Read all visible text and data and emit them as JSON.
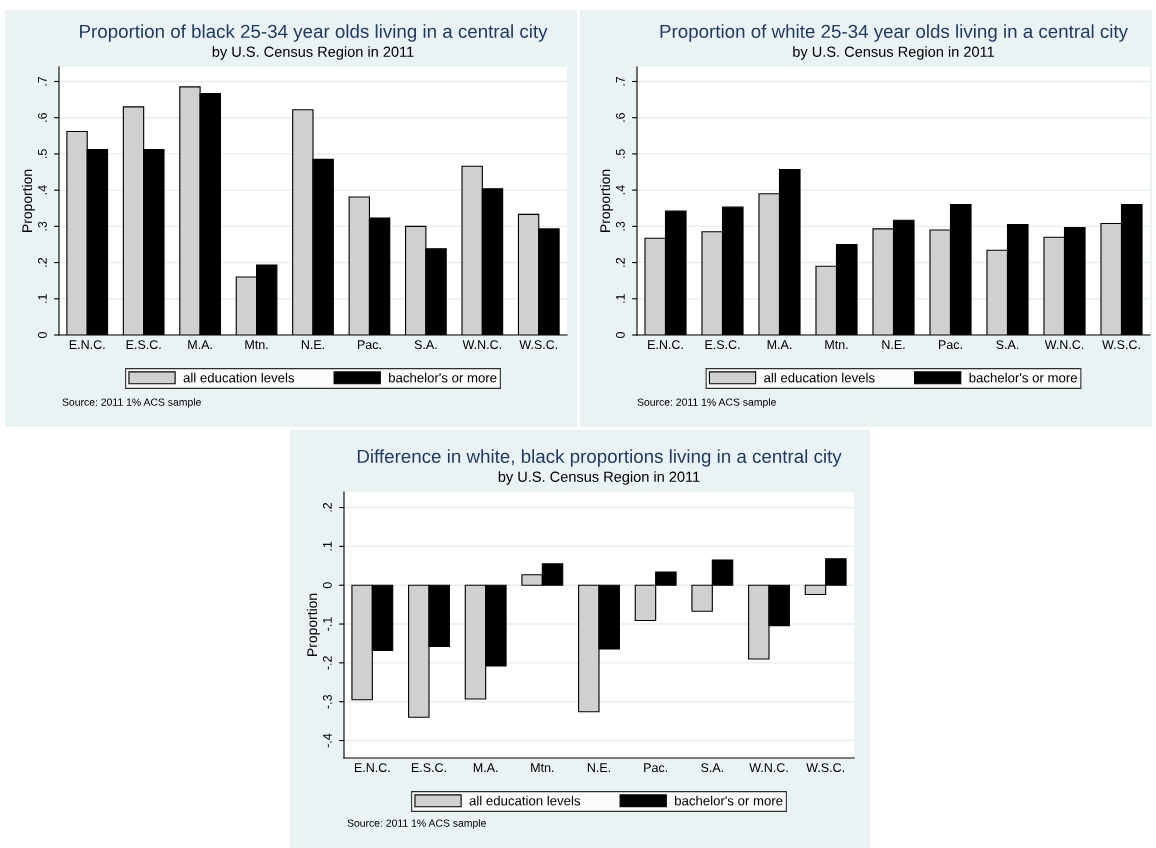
{
  "chart_data": [
    {
      "type": "bar",
      "title": "Proportion of black 25-34 year olds living in a central city",
      "subtitle": "by U.S. Census Region in 2011",
      "ylabel": "Proportion",
      "categories": [
        "E.N.C.",
        "E.S.C.",
        "M.A.",
        "Mtn.",
        "N.E.",
        "Pac.",
        "S.A.",
        "W.N.C.",
        "W.S.C."
      ],
      "series": [
        {
          "name": "all education levels",
          "color": "#d0d0d0",
          "values": [
            0.562,
            0.63,
            0.685,
            0.16,
            0.622,
            0.381,
            0.3,
            0.466,
            0.333
          ]
        },
        {
          "name": "bachelor's or more",
          "color": "#000000",
          "values": [
            0.512,
            0.512,
            0.667,
            0.193,
            0.485,
            0.323,
            0.238,
            0.404,
            0.293
          ]
        }
      ],
      "ylim": [
        0,
        0.74
      ],
      "yticks": [
        {
          "value": 0,
          "label": "0"
        },
        {
          "value": 0.1,
          "label": ".1"
        },
        {
          "value": 0.2,
          "label": ".2"
        },
        {
          "value": 0.3,
          "label": ".3"
        },
        {
          "value": 0.4,
          "label": ".4"
        },
        {
          "value": 0.5,
          "label": ".5"
        },
        {
          "value": 0.6,
          "label": ".6"
        },
        {
          "value": 0.7,
          "label": ".7"
        }
      ],
      "grid": "y",
      "legend": "bottom",
      "annotations": [
        "Source: 2011 1% ACS sample"
      ]
    },
    {
      "type": "bar",
      "title": "Proportion of white 25-34 year olds living in a central city",
      "subtitle": "by U.S. Census Region in 2011",
      "ylabel": "Proportion",
      "categories": [
        "E.N.C.",
        "E.S.C.",
        "M.A.",
        "Mtn.",
        "N.E.",
        "Pac.",
        "S.A.",
        "W.N.C.",
        "W.S.C."
      ],
      "series": [
        {
          "name": "all education levels",
          "color": "#d0d0d0",
          "values": [
            0.267,
            0.285,
            0.39,
            0.19,
            0.293,
            0.29,
            0.234,
            0.27,
            0.308
          ]
        },
        {
          "name": "bachelor's or more",
          "color": "#000000",
          "values": [
            0.342,
            0.353,
            0.457,
            0.25,
            0.317,
            0.36,
            0.305,
            0.297,
            0.36
          ]
        }
      ],
      "ylim": [
        0,
        0.74
      ],
      "yticks": [
        {
          "value": 0,
          "label": "0"
        },
        {
          "value": 0.1,
          "label": ".1"
        },
        {
          "value": 0.2,
          "label": ".2"
        },
        {
          "value": 0.3,
          "label": ".3"
        },
        {
          "value": 0.4,
          "label": ".4"
        },
        {
          "value": 0.5,
          "label": ".5"
        },
        {
          "value": 0.6,
          "label": ".6"
        },
        {
          "value": 0.7,
          "label": ".7"
        }
      ],
      "grid": "y",
      "legend": "bottom",
      "annotations": [
        "Source: 2011 1% ACS sample"
      ]
    },
    {
      "type": "bar",
      "title": "Difference in white, black proportions living in a central city",
      "subtitle": "by U.S. Census Region in 2011",
      "ylabel": "Proportion",
      "categories": [
        "E.N.C.",
        "E.S.C.",
        "M.A.",
        "Mtn.",
        "N.E.",
        "Pac.",
        "S.A.",
        "W.N.C.",
        "W.S.C."
      ],
      "series": [
        {
          "name": "all education levels",
          "color": "#d0d0d0",
          "values": [
            -0.295,
            -0.34,
            -0.293,
            0.027,
            -0.326,
            -0.091,
            -0.067,
            -0.19,
            -0.024
          ]
        },
        {
          "name": "bachelor's or more",
          "color": "#000000",
          "values": [
            -0.168,
            -0.158,
            -0.208,
            0.055,
            -0.164,
            0.034,
            0.065,
            -0.104,
            0.068
          ]
        }
      ],
      "ylim": [
        -0.445,
        0.24
      ],
      "yticks": [
        {
          "value": -0.4,
          "label": "-.4"
        },
        {
          "value": -0.3,
          "label": "-.3"
        },
        {
          "value": -0.2,
          "label": "-.2"
        },
        {
          "value": -0.1,
          "label": "-.1"
        },
        {
          "value": 0,
          "label": "0"
        },
        {
          "value": 0.1,
          "label": ".1"
        },
        {
          "value": 0.2,
          "label": ".2"
        }
      ],
      "grid": "y",
      "legend": "bottom",
      "annotations": [
        "Source: 2011 1% ACS sample"
      ]
    }
  ]
}
